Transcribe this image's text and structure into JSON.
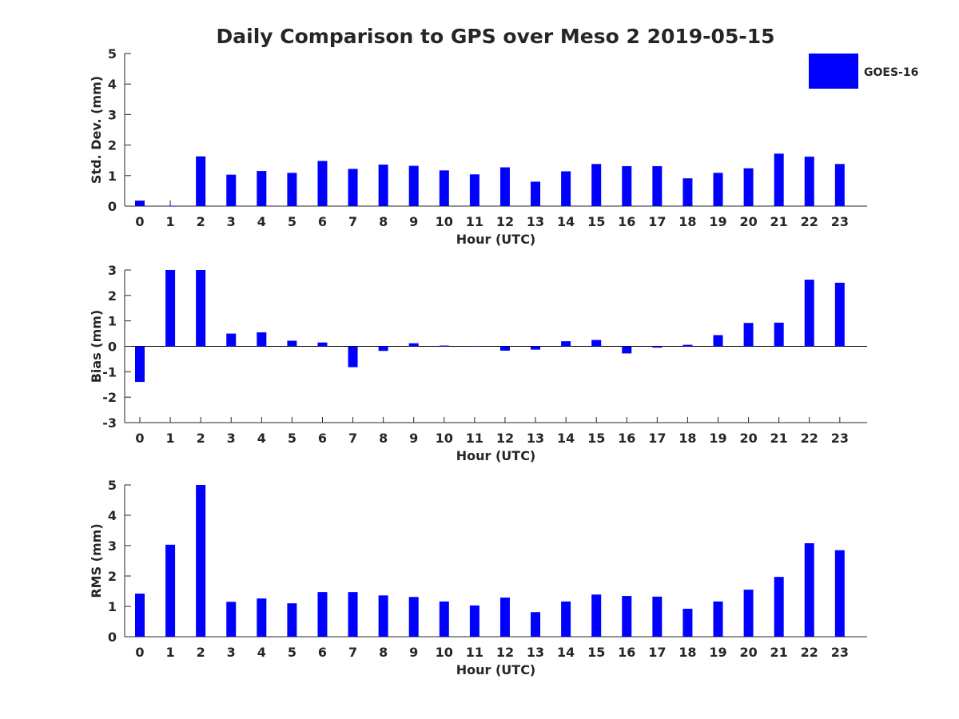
{
  "title": "Daily Comparison to GPS over Meso 2 2019-05-15",
  "colors": {
    "bar": "#0000ff",
    "axis": "#262626",
    "text": "#262626"
  },
  "chart_data": [
    {
      "type": "bar",
      "ylabel": "Std. Dev. (mm)",
      "xlabel": "Hour (UTC)",
      "ylim": [
        0,
        5
      ],
      "yticks": [
        0,
        1,
        2,
        3,
        4,
        5
      ],
      "categories": [
        "0",
        "1",
        "2",
        "3",
        "4",
        "5",
        "6",
        "7",
        "8",
        "9",
        "10",
        "11",
        "12",
        "13",
        "14",
        "15",
        "16",
        "17",
        "18",
        "19",
        "20",
        "21",
        "22",
        "23"
      ],
      "series": [
        {
          "name": "GOES-16",
          "values": [
            0.18,
            0.0,
            1.63,
            1.03,
            1.15,
            1.09,
            1.48,
            1.22,
            1.36,
            1.32,
            1.17,
            1.04,
            1.27,
            0.8,
            1.14,
            1.38,
            1.31,
            1.31,
            0.91,
            1.09,
            1.24,
            1.72,
            1.62,
            1.38
          ]
        }
      ]
    },
    {
      "type": "bar",
      "ylabel": "Bias (mm)",
      "xlabel": "Hour (UTC)",
      "ylim": [
        -3,
        3
      ],
      "yticks": [
        -3,
        -2,
        -1,
        0,
        1,
        2,
        3
      ],
      "zero_line": true,
      "categories": [
        "0",
        "1",
        "2",
        "3",
        "4",
        "5",
        "6",
        "7",
        "8",
        "9",
        "10",
        "11",
        "12",
        "13",
        "14",
        "15",
        "16",
        "17",
        "18",
        "19",
        "20",
        "21",
        "22",
        "23"
      ],
      "series": [
        {
          "name": "GOES-16",
          "values": [
            -1.4,
            3.0,
            3.0,
            0.5,
            0.55,
            0.22,
            0.15,
            -0.82,
            -0.18,
            0.12,
            0.03,
            0.0,
            -0.17,
            -0.13,
            0.2,
            0.25,
            -0.28,
            -0.05,
            0.06,
            0.44,
            0.92,
            0.93,
            2.62,
            2.5
          ]
        }
      ]
    },
    {
      "type": "bar",
      "ylabel": "RMS (mm)",
      "xlabel": "Hour (UTC)",
      "ylim": [
        0,
        5
      ],
      "yticks": [
        0,
        1,
        2,
        3,
        4,
        5
      ],
      "categories": [
        "0",
        "1",
        "2",
        "3",
        "4",
        "5",
        "6",
        "7",
        "8",
        "9",
        "10",
        "11",
        "12",
        "13",
        "14",
        "15",
        "16",
        "17",
        "18",
        "19",
        "20",
        "21",
        "22",
        "23"
      ],
      "series": [
        {
          "name": "GOES-16",
          "values": [
            1.42,
            3.03,
            5.0,
            1.15,
            1.26,
            1.1,
            1.47,
            1.47,
            1.36,
            1.31,
            1.16,
            1.03,
            1.29,
            0.81,
            1.16,
            1.39,
            1.34,
            1.32,
            0.92,
            1.16,
            1.55,
            1.97,
            3.08,
            2.85
          ]
        }
      ]
    }
  ],
  "legend": {
    "label": "GOES-16",
    "location": "top-right"
  }
}
